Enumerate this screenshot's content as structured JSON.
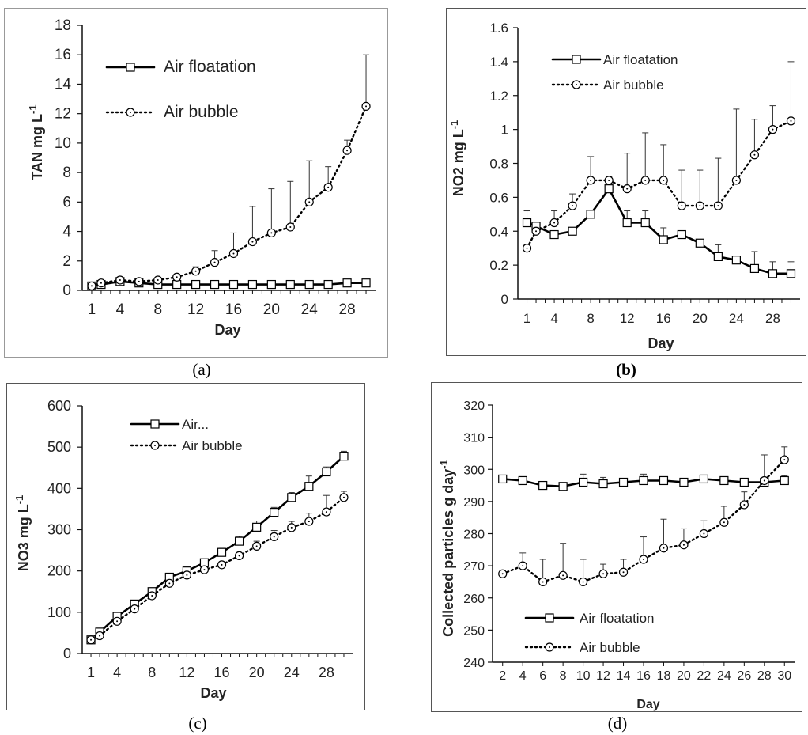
{
  "panels": [
    {
      "id": "a",
      "caption": "(a)",
      "chart_data": {
        "type": "line",
        "ylabel": "TAN mg L",
        "ylabel_sup": "-1",
        "xlabel": "Day",
        "x": [
          1,
          2,
          4,
          6,
          8,
          10,
          12,
          14,
          16,
          18,
          20,
          22,
          24,
          26,
          28,
          30
        ],
        "xticks": [
          1,
          4,
          8,
          12,
          16,
          20,
          24,
          28
        ],
        "ylim": [
          0,
          18
        ],
        "yticks": [
          0,
          2,
          4,
          6,
          8,
          10,
          12,
          14,
          16,
          18
        ],
        "legend_position": "top-left",
        "series": [
          {
            "name": "Air floatation",
            "style": "solid",
            "marker": "square",
            "values": [
              0.3,
              0.4,
              0.6,
              0.5,
              0.4,
              0.4,
              0.4,
              0.4,
              0.4,
              0.4,
              0.4,
              0.4,
              0.4,
              0.4,
              0.5,
              0.5
            ],
            "err": [
              0.1,
              0.1,
              0.3,
              0.1,
              0.1,
              0.1,
              0.1,
              0.1,
              0.1,
              0.1,
              0.1,
              0.1,
              0.1,
              0.1,
              0.1,
              0.1
            ]
          },
          {
            "name": "Air bubble",
            "style": "dotted",
            "marker": "circle",
            "values": [
              0.3,
              0.5,
              0.7,
              0.6,
              0.7,
              0.9,
              1.3,
              1.9,
              2.5,
              3.3,
              3.9,
              4.3,
              6.0,
              7.0,
              9.5,
              12.5
            ],
            "err": [
              0.1,
              0.1,
              0.2,
              0.1,
              0.1,
              0.2,
              0.3,
              0.8,
              1.4,
              2.4,
              3.0,
              3.1,
              2.8,
              1.4,
              0.7,
              3.5
            ]
          }
        ]
      }
    },
    {
      "id": "b",
      "caption": "(b)",
      "chart_data": {
        "type": "line",
        "ylabel": "NO2  mg L",
        "ylabel_sup": "-1",
        "xlabel": "Day",
        "x": [
          1,
          2,
          4,
          6,
          8,
          10,
          12,
          14,
          16,
          18,
          20,
          22,
          24,
          26,
          28,
          30
        ],
        "xticks": [
          1,
          4,
          8,
          12,
          16,
          20,
          24,
          28
        ],
        "ylim": [
          0,
          1.6
        ],
        "yticks": [
          0,
          0.2,
          0.4,
          0.6,
          0.8,
          1,
          1.2,
          1.4,
          1.6
        ],
        "yticklabels": [
          "0",
          "0.2",
          "0.4",
          "0.6",
          "0.8",
          "1",
          "1.2",
          "1.4",
          "1.6"
        ],
        "legend_position": "top-left",
        "series": [
          {
            "name": "Air floatation",
            "style": "solid",
            "marker": "square",
            "values": [
              0.45,
              0.43,
              0.38,
              0.4,
              0.5,
              0.65,
              0.45,
              0.45,
              0.35,
              0.38,
              0.33,
              0.25,
              0.23,
              0.18,
              0.15,
              0.15
            ],
            "err": [
              0.07,
              0.02,
              0.02,
              0.02,
              0.02,
              0.07,
              0.07,
              0.07,
              0.07,
              0.02,
              0.02,
              0.07,
              0.02,
              0.1,
              0.07,
              0.07
            ]
          },
          {
            "name": "Air bubble",
            "style": "dotted",
            "marker": "circle",
            "values": [
              0.3,
              0.4,
              0.45,
              0.55,
              0.7,
              0.7,
              0.65,
              0.7,
              0.7,
              0.55,
              0.55,
              0.55,
              0.7,
              0.85,
              1.0,
              1.05
            ],
            "err": [
              0.02,
              0.02,
              0.07,
              0.07,
              0.14,
              0.02,
              0.21,
              0.28,
              0.21,
              0.21,
              0.21,
              0.28,
              0.42,
              0.21,
              0.14,
              0.35
            ]
          }
        ]
      }
    },
    {
      "id": "c",
      "caption": "(c)",
      "chart_data": {
        "type": "line",
        "ylabel": "NO3  mg L",
        "ylabel_sup": "-1",
        "xlabel": "Day",
        "x": [
          1,
          2,
          4,
          6,
          8,
          10,
          12,
          14,
          16,
          18,
          20,
          22,
          24,
          26,
          28,
          30
        ],
        "xticks": [
          1,
          4,
          8,
          12,
          16,
          20,
          24,
          28
        ],
        "ylim": [
          0,
          600
        ],
        "yticks": [
          0,
          100,
          200,
          300,
          400,
          500,
          600
        ],
        "legend_position": "top-left",
        "series": [
          {
            "name": "Air...",
            "style": "solid",
            "marker": "square",
            "values": [
              33,
              52,
              90,
              120,
              150,
              185,
              200,
              220,
              245,
              272,
              306,
              342,
              378,
              405,
              440,
              478
            ],
            "err": [
              4,
              4,
              5,
              5,
              5,
              8,
              5,
              5,
              10,
              12,
              15,
              12,
              12,
              25,
              12,
              12
            ]
          },
          {
            "name": "Air bubble",
            "style": "dotted",
            "marker": "circle",
            "values": [
              33,
              43,
              78,
              108,
              140,
              170,
              190,
              203,
              215,
              237,
              260,
              283,
              305,
              320,
              343,
              378
            ],
            "err": [
              4,
              4,
              5,
              5,
              5,
              8,
              5,
              5,
              5,
              5,
              12,
              15,
              15,
              20,
              40,
              15
            ]
          }
        ]
      }
    },
    {
      "id": "d",
      "caption": "(d)",
      "chart_data": {
        "type": "line",
        "ylabel": "Collected particles  g day",
        "ylabel_sup": "-1",
        "xlabel": "Day",
        "x": [
          2,
          4,
          6,
          8,
          10,
          12,
          14,
          16,
          18,
          20,
          22,
          24,
          26,
          28,
          30
        ],
        "xticks": [
          2,
          4,
          6,
          8,
          10,
          12,
          14,
          16,
          18,
          20,
          22,
          24,
          26,
          28,
          30
        ],
        "ylim": [
          240,
          320
        ],
        "yticks": [
          240,
          250,
          260,
          270,
          280,
          290,
          300,
          310,
          320
        ],
        "legend_position": "bottom-left",
        "series": [
          {
            "name": "Air floatation",
            "style": "solid",
            "marker": "square",
            "values": [
              297,
              296.5,
              295,
              294.7,
              296,
              295.5,
              296,
              296.5,
              296.5,
              296,
              297,
              296.5,
              296,
              296,
              296.5
            ],
            "err": [
              0.5,
              0.5,
              0.5,
              0.5,
              2.5,
              2,
              1,
              2,
              1,
              1,
              1,
              1,
              1,
              1,
              1.5
            ]
          },
          {
            "name": "Air bubble",
            "style": "dotted",
            "marker": "circle",
            "values": [
              267.5,
              270,
              265,
              267,
              265,
              267.5,
              268,
              272,
              275.5,
              276.5,
              280,
              283.5,
              289,
              296.5,
              303
            ],
            "err": [
              1,
              4,
              7,
              10,
              7,
              3,
              4,
              7,
              9,
              5,
              4,
              5,
              4,
              8,
              4
            ]
          }
        ]
      }
    }
  ]
}
